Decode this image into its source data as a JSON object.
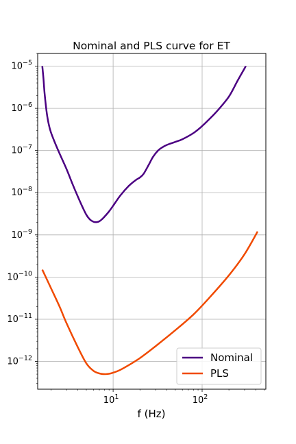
{
  "chart_data": {
    "type": "line",
    "title": "Nominal and PLS curve for ET",
    "xlabel": "f (Hz)",
    "ylabel": "",
    "xscale": "log",
    "yscale": "log",
    "xlim": [
      1.42,
      520
    ],
    "ylim": [
      2.2e-13,
      2e-05
    ],
    "grid": true,
    "legend_position": "lower-right",
    "x_ticks": [
      {
        "value": 10,
        "base": "10",
        "exp": "1"
      },
      {
        "value": 100,
        "base": "10",
        "exp": "2"
      }
    ],
    "y_ticks": [
      {
        "value": 1e-05,
        "base": "10",
        "exp": "−5"
      },
      {
        "value": 1e-06,
        "base": "10",
        "exp": "−6"
      },
      {
        "value": 1e-07,
        "base": "10",
        "exp": "−7"
      },
      {
        "value": 1e-08,
        "base": "10",
        "exp": "−8"
      },
      {
        "value": 1e-09,
        "base": "10",
        "exp": "−9"
      },
      {
        "value": 1e-10,
        "base": "10",
        "exp": "−10"
      },
      {
        "value": 1e-11,
        "base": "10",
        "exp": "−11"
      },
      {
        "value": 1e-12,
        "base": "10",
        "exp": "−12"
      }
    ],
    "series": [
      {
        "name": "Nominal",
        "color": "#4b0082",
        "x": [
          1.6,
          1.65,
          1.7,
          1.8,
          1.9,
          2.0,
          2.2,
          2.5,
          3,
          3.5,
          4,
          4.5,
          5,
          5.5,
          6,
          6.5,
          7,
          7.5,
          8,
          9,
          10,
          12,
          15,
          18,
          20,
          22,
          25,
          28,
          32,
          36,
          40,
          50,
          60,
          80,
          100,
          120,
          150,
          200,
          250,
          310
        ],
        "y": [
          1e-05,
          5e-06,
          2.2e-06,
          7.5e-07,
          4e-07,
          2.7e-07,
          1.6e-07,
          8.5e-08,
          3.6e-08,
          1.6e-08,
          8.2e-09,
          4.7e-09,
          3e-09,
          2.3e-09,
          2.05e-09,
          2e-09,
          2.1e-09,
          2.35e-09,
          2.7e-09,
          3.6e-09,
          4.9e-09,
          8.5e-09,
          1.45e-08,
          2e-08,
          2.3e-08,
          2.8e-08,
          4.5e-08,
          7e-08,
          1e-07,
          1.2e-07,
          1.35e-07,
          1.6e-07,
          1.85e-07,
          2.6e-07,
          3.8e-07,
          5.5e-07,
          9e-07,
          1.9e-06,
          4.5e-06,
          1e-05
        ]
      },
      {
        "name": "PLS",
        "color": "#f04a00",
        "x": [
          1.6,
          2,
          2.5,
          3,
          4,
          5,
          6,
          7,
          8,
          9,
          10,
          12,
          15,
          20,
          30,
          50,
          80,
          120,
          200,
          300,
          420
        ],
        "y": [
          1.5e-10,
          5.5e-11,
          2e-11,
          8e-12,
          2.2e-12,
          9e-13,
          6e-13,
          5.2e-13,
          5e-13,
          5.1e-13,
          5.4e-13,
          6.3e-13,
          8.2e-13,
          1.2e-12,
          2.3e-12,
          5.5e-12,
          1.3e-11,
          3.2e-11,
          1.1e-10,
          3.5e-10,
          1.2e-09
        ]
      }
    ]
  }
}
